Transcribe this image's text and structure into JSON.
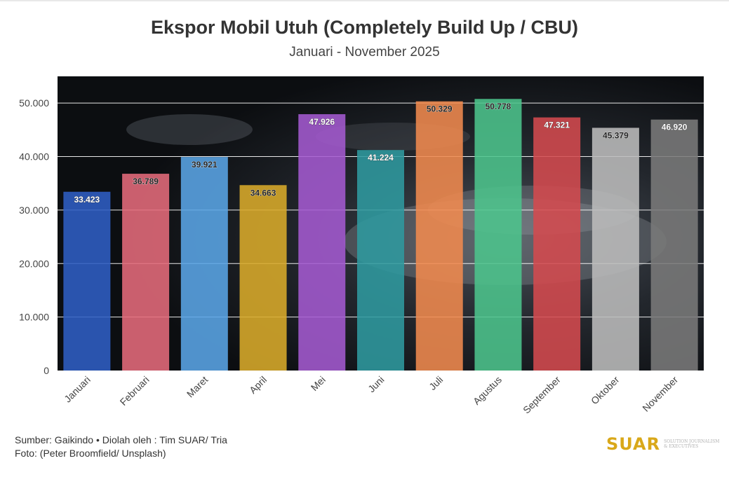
{
  "header": {
    "title": "Ekspor Mobil Utuh (Completely Build Up / CBU)",
    "subtitle": "Januari - November 2025"
  },
  "footer": {
    "source": "Sumber: Gaikindo • Diolah oleh : Tim SUAR/ Tria",
    "photo_credit": "Foto: (Peter Broomfield/ Unsplash)"
  },
  "logo": {
    "word": "SUAR",
    "tagline": "SOLUTION JOURNALISM & EXECUTIVES"
  },
  "chart_data": {
    "type": "bar",
    "title": "Ekspor Mobil Utuh (Completely Build Up / CBU)",
    "subtitle": "Januari - November 2025",
    "categories": [
      "Januari",
      "Februari",
      "Maret",
      "April",
      "Mei",
      "Juni",
      "Juli",
      "Agustus",
      "September",
      "Oktober",
      "November"
    ],
    "values": [
      33423,
      36789,
      39921,
      34663,
      47926,
      41224,
      50329,
      50778,
      47321,
      45379,
      46920
    ],
    "data_labels": [
      "33.423",
      "36.789",
      "39.921",
      "34.663",
      "47.926",
      "41.224",
      "50.329",
      "50.778",
      "47.321",
      "45.379",
      "46.920"
    ],
    "colors": [
      "#2f5fc4",
      "#e56b7b",
      "#5aa5e6",
      "#d9ab2a",
      "#a45ad0",
      "#2f9a9f",
      "#f08a4e",
      "#4cc48c",
      "#d44a4f",
      "#bcbcbc",
      "#7a7a7a"
    ],
    "label_colors": [
      "#ffffff",
      "#222222",
      "#222222",
      "#222222",
      "#ffffff",
      "#ffffff",
      "#222222",
      "#222222",
      "#ffffff",
      "#222222",
      "#ffffff"
    ],
    "ylim": [
      0,
      55000
    ],
    "yticks": [
      0,
      10000,
      20000,
      30000,
      40000,
      50000
    ],
    "ytick_labels": [
      "0",
      "10.000",
      "20.000",
      "30.000",
      "40.000",
      "50.000"
    ],
    "xlabel": "",
    "ylabel": "",
    "grid": true,
    "legend": false
  }
}
